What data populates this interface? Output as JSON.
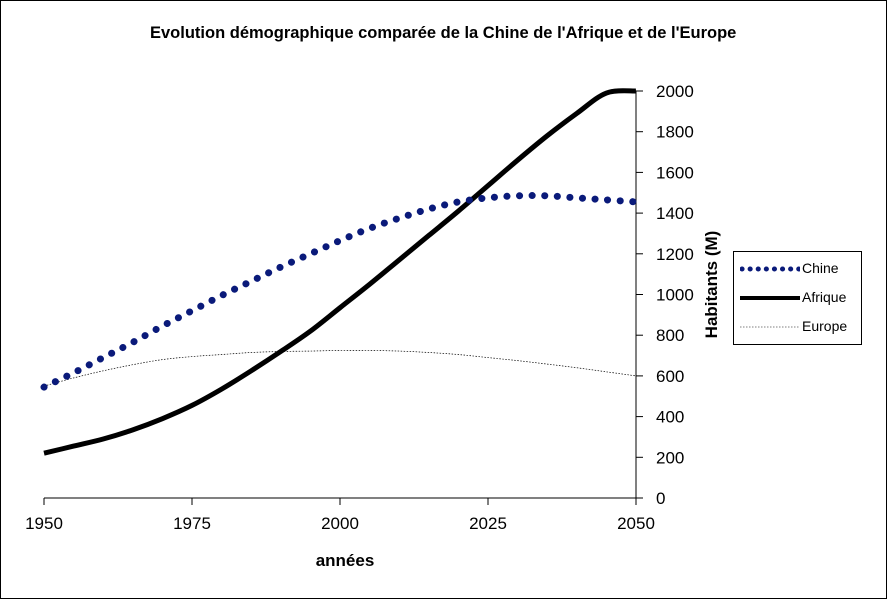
{
  "chart_data": {
    "type": "line",
    "title": "Evolution démographique comparée de la Chine de l'Afrique et de l'Europe",
    "xlabel": "années",
    "ylabel": "Habitants (M)",
    "xlim": [
      1950,
      2050
    ],
    "ylim": [
      0,
      2000
    ],
    "x_ticks": [
      "1950",
      "1975",
      "2000",
      "2025",
      "2050"
    ],
    "y_ticks": [
      "0",
      "200",
      "400",
      "600",
      "800",
      "1000",
      "1200",
      "1400",
      "1600",
      "1800",
      "2000"
    ],
    "y_axis_side": "right",
    "legend_position": "right",
    "grid": false,
    "x": [
      1950,
      1955,
      1960,
      1965,
      1970,
      1975,
      1980,
      1985,
      1990,
      1995,
      2000,
      2005,
      2010,
      2015,
      2020,
      2025,
      2030,
      2035,
      2040,
      2045,
      2050
    ],
    "series": [
      {
        "name": "Chine",
        "style": "dotted",
        "color": "#0a1a7a",
        "values": [
          545,
          615,
          690,
          765,
          845,
          920,
          995,
          1065,
          1135,
          1200,
          1265,
          1325,
          1375,
          1420,
          1455,
          1475,
          1485,
          1485,
          1475,
          1465,
          1455
        ]
      },
      {
        "name": "Afrique",
        "style": "solid-thick",
        "color": "#000000",
        "values": [
          220,
          255,
          290,
          335,
          390,
          455,
          535,
          625,
          720,
          820,
          935,
          1050,
          1170,
          1290,
          1410,
          1535,
          1660,
          1780,
          1890,
          1990,
          2000
        ]
      },
      {
        "name": "Europe",
        "style": "solid-thin",
        "color": "#000000",
        "values": [
          550,
          590,
          625,
          655,
          680,
          695,
          705,
          715,
          720,
          722,
          725,
          725,
          722,
          715,
          705,
          690,
          675,
          658,
          640,
          620,
          600
        ]
      }
    ]
  }
}
